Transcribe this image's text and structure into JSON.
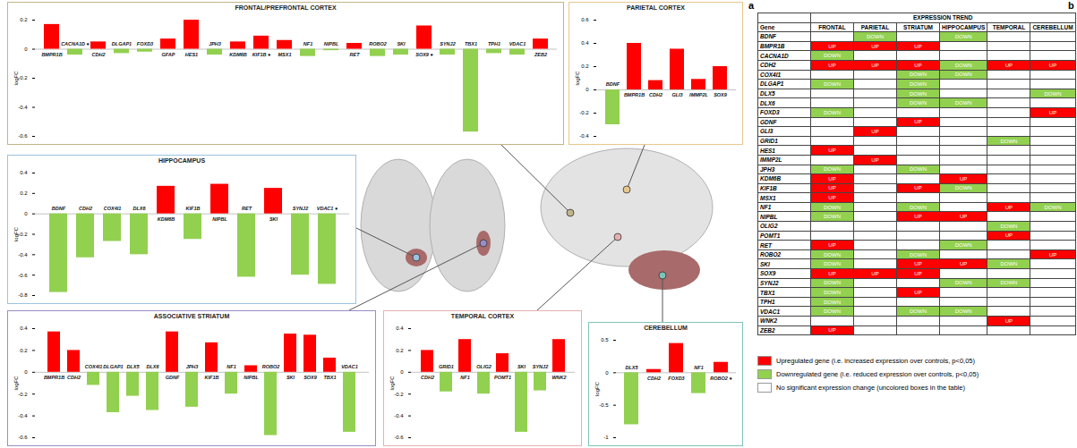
{
  "letters": [
    "a",
    "b"
  ],
  "chart_data": [
    {
      "type": "bar",
      "title": "FRONTAL/PREFRONTAL CORTEX",
      "y_label": "logFC",
      "categories": [
        "BMPR1B",
        "CACNA1D ●",
        "CDH2",
        "DLGAP1",
        "FOXD3",
        "GFAP",
        "HES1",
        "JPH3",
        "KDM6B",
        "KIF1B ●",
        "MSX1",
        "NF1",
        "NIPBL",
        "RET",
        "ROBO2",
        "SKI",
        "SOX9 ●",
        "SYNJ2",
        "TBX1",
        "TPH1",
        "VDAC1",
        "ZEB2"
      ],
      "values": [
        0.17,
        -0.04,
        0.05,
        -0.03,
        -0.02,
        0.07,
        0.2,
        -0.04,
        0.05,
        0.09,
        0.06,
        -0.05,
        -0.01,
        0.04,
        -0.05,
        -0.04,
        0.16,
        -0.04,
        -0.57,
        -0.03,
        -0.04,
        0.07
      ],
      "colors": [
        "#ff0000",
        "#92d050",
        "#ff0000",
        "#92d050",
        "#92d050",
        "#ff0000",
        "#ff0000",
        "#92d050",
        "#ff0000",
        "#ff0000",
        "#ff0000",
        "#92d050",
        "#92d050",
        "#ff0000",
        "#92d050",
        "#92d050",
        "#ff0000",
        "#92d050",
        "#92d050",
        "#92d050",
        "#92d050",
        "#ff0000"
      ],
      "ylim": [
        -0.6,
        0.2
      ],
      "yticks": [
        -0.6,
        -0.4,
        -0.2,
        0,
        0.2
      ]
    },
    {
      "type": "bar",
      "title": "PARIETAL CORTEX",
      "y_label": "logFC",
      "categories": [
        "BDNF",
        "BMPR1B",
        "CDH2",
        "GLI3",
        "IMMP2L",
        "SOX9"
      ],
      "values": [
        -0.3,
        0.4,
        0.08,
        0.35,
        0.09,
        0.2
      ],
      "colors": [
        "#92d050",
        "#ff0000",
        "#ff0000",
        "#ff0000",
        "#ff0000",
        "#ff0000"
      ],
      "ylim": [
        -0.4,
        0.6
      ],
      "yticks": [
        -0.4,
        -0.2,
        0,
        0.2,
        0.4,
        0.6
      ]
    },
    {
      "type": "bar",
      "title": "HIPPOCAMPUS",
      "y_label": "logFC",
      "categories": [
        "BDNF",
        "CDH2",
        "COX4I1",
        "DLX6",
        "KDM6B",
        "KIF1B",
        "NIPBL",
        "RET",
        "SKI",
        "SYNJ2",
        "VDAC1 ●"
      ],
      "values": [
        -0.77,
        -0.43,
        -0.27,
        -0.4,
        0.27,
        -0.25,
        0.29,
        -0.62,
        0.25,
        -0.6,
        -0.69
      ],
      "colors": [
        "#92d050",
        "#92d050",
        "#92d050",
        "#92d050",
        "#ff0000",
        "#92d050",
        "#ff0000",
        "#92d050",
        "#ff0000",
        "#92d050",
        "#92d050"
      ],
      "ylim": [
        -0.8,
        0.4
      ],
      "yticks": [
        -0.8,
        -0.6,
        -0.4,
        -0.2,
        0,
        0.2,
        0.4
      ]
    },
    {
      "type": "bar",
      "title": "ASSOCIATIVE STRIATUM",
      "y_label": "logFC",
      "categories": [
        "BMPR1B",
        "CDH2",
        "COX4I1",
        "DLGAP1",
        "DLX5",
        "DLX6",
        "GDNF",
        "JPH3",
        "KIF1B",
        "NF1",
        "NIPBL",
        "ROBO2",
        "SKI",
        "SOX9",
        "TBX1",
        "VDAC1"
      ],
      "values": [
        0.37,
        0.2,
        -0.12,
        -0.37,
        -0.22,
        -0.35,
        0.37,
        -0.32,
        0.27,
        -0.2,
        0.06,
        -0.58,
        0.35,
        0.34,
        0.13,
        -0.55
      ],
      "colors": [
        "#ff0000",
        "#ff0000",
        "#92d050",
        "#92d050",
        "#92d050",
        "#92d050",
        "#ff0000",
        "#92d050",
        "#ff0000",
        "#92d050",
        "#ff0000",
        "#92d050",
        "#ff0000",
        "#ff0000",
        "#ff0000",
        "#92d050"
      ],
      "ylim": [
        -0.6,
        0.4
      ],
      "yticks": [
        -0.6,
        -0.4,
        -0.2,
        0,
        0.2,
        0.4
      ]
    },
    {
      "type": "bar",
      "title": "TEMPORAL CORTEX",
      "y_label": "logFC",
      "categories": [
        "CDH2",
        "GRID1",
        "NF1",
        "OLIG2",
        "POMT1",
        "SKI",
        "SYNJ2",
        "WNK2"
      ],
      "values": [
        0.2,
        -0.18,
        0.3,
        -0.2,
        0.17,
        -0.55,
        -0.17,
        0.3
      ],
      "colors": [
        "#ff0000",
        "#92d050",
        "#ff0000",
        "#92d050",
        "#ff0000",
        "#92d050",
        "#92d050",
        "#ff0000"
      ],
      "ylim": [
        -0.6,
        0.4
      ],
      "yticks": [
        -0.6,
        -0.4,
        -0.2,
        0,
        0.2,
        0.4
      ]
    },
    {
      "type": "bar",
      "title": "CEREBELLUM",
      "y_label": "logFC",
      "categories": [
        "DLX5",
        "CDH2",
        "FOXD3",
        "NF1",
        "ROBO2 ●"
      ],
      "values": [
        -0.8,
        0.05,
        0.45,
        -0.32,
        0.16
      ],
      "colors": [
        "#92d050",
        "#ff0000",
        "#ff0000",
        "#92d050",
        "#ff0000"
      ],
      "ylim": [
        -1,
        0.5
      ],
      "yticks": [
        -1,
        -0.5,
        0,
        0.5
      ]
    }
  ],
  "table": {
    "header": "EXPRESSION TREND",
    "columns": [
      "Gene",
      "FRONTAL",
      "PARIETAL",
      "STRIATUM",
      "HIPPOCAMPUS",
      "TEMPORAL",
      "CEREBELLUM"
    ],
    "cell_colors": {
      "UP": "#ff0000",
      "DOWN": "#92d050"
    },
    "rows": [
      [
        "BDNF",
        null,
        "DOWN",
        null,
        "DOWN",
        null,
        null
      ],
      [
        "BMPR1B",
        "UP",
        "UP",
        "UP",
        null,
        null,
        null
      ],
      [
        "CACNA1D",
        "DOWN",
        null,
        null,
        null,
        null,
        null
      ],
      [
        "CDH2",
        "UP",
        "UP",
        "UP",
        "DOWN",
        "UP",
        "UP"
      ],
      [
        "COX4I1",
        null,
        null,
        "DOWN",
        "DOWN",
        null,
        null
      ],
      [
        "DLGAP1",
        "DOWN",
        null,
        "DOWN",
        null,
        null,
        null
      ],
      [
        "DLX5",
        null,
        null,
        "DOWN",
        null,
        null,
        "DOWN"
      ],
      [
        "DLX6",
        null,
        null,
        "DOWN",
        "DOWN",
        null,
        null
      ],
      [
        "FOXD3",
        "DOWN",
        null,
        null,
        null,
        null,
        "UP"
      ],
      [
        "GDNF",
        null,
        null,
        "UP",
        null,
        null,
        null
      ],
      [
        "GLI3",
        null,
        "UP",
        null,
        null,
        null,
        null
      ],
      [
        "GRID1",
        null,
        null,
        null,
        null,
        "DOWN",
        null
      ],
      [
        "HES1",
        "UP",
        null,
        null,
        null,
        null,
        null
      ],
      [
        "IMMP2L",
        null,
        "UP",
        null,
        null,
        null,
        null
      ],
      [
        "JPH3",
        "DOWN",
        null,
        "DOWN",
        null,
        null,
        null
      ],
      [
        "KDM6B",
        "UP",
        null,
        null,
        "UP",
        null,
        null
      ],
      [
        "KIF1B",
        "UP",
        null,
        "UP",
        "DOWN",
        null,
        null
      ],
      [
        "MSX1",
        "UP",
        null,
        null,
        null,
        null,
        null
      ],
      [
        "NF1",
        "DOWN",
        null,
        "DOWN",
        null,
        "UP",
        "DOWN"
      ],
      [
        "NIPBL",
        "DOWN",
        null,
        "UP",
        "UP",
        null,
        null
      ],
      [
        "OLIG2",
        null,
        null,
        null,
        null,
        "DOWN",
        null
      ],
      [
        "POMT1",
        null,
        null,
        null,
        null,
        "UP",
        null
      ],
      [
        "RET",
        "UP",
        null,
        null,
        "DOWN",
        null,
        null
      ],
      [
        "ROBO2",
        "DOWN",
        null,
        "DOWN",
        null,
        null,
        "UP"
      ],
      [
        "SKI",
        "DOWN",
        null,
        "UP",
        "UP",
        "DOWN",
        null
      ],
      [
        "SOX9",
        "UP",
        "UP",
        "UP",
        null,
        null,
        null
      ],
      [
        "SYNJ2",
        "DOWN",
        null,
        null,
        "DOWN",
        "DOWN",
        null
      ],
      [
        "TBX1",
        "DOWN",
        null,
        "UP",
        null,
        null,
        null
      ],
      [
        "TPH1",
        "DOWN",
        null,
        null,
        null,
        null,
        null
      ],
      [
        "VDAC1",
        "DOWN",
        null,
        "DOWN",
        "DOWN",
        null,
        null
      ],
      [
        "WNK2",
        null,
        null,
        null,
        null,
        "UP",
        null
      ],
      [
        "ZEB2",
        "UP",
        null,
        null,
        null,
        null,
        null
      ]
    ]
  },
  "legend": [
    {
      "color": "#ff0000",
      "text": "Upregulated gene (i.e. increased expression over controls, p<0,05)"
    },
    {
      "color": "#92d050",
      "text": "Downregulated gene (i.e. reduced expression over controls, p<0,05)"
    },
    {
      "color": "#ffffff",
      "text": "No significant expression change (uncolored boxes in the table)"
    }
  ]
}
